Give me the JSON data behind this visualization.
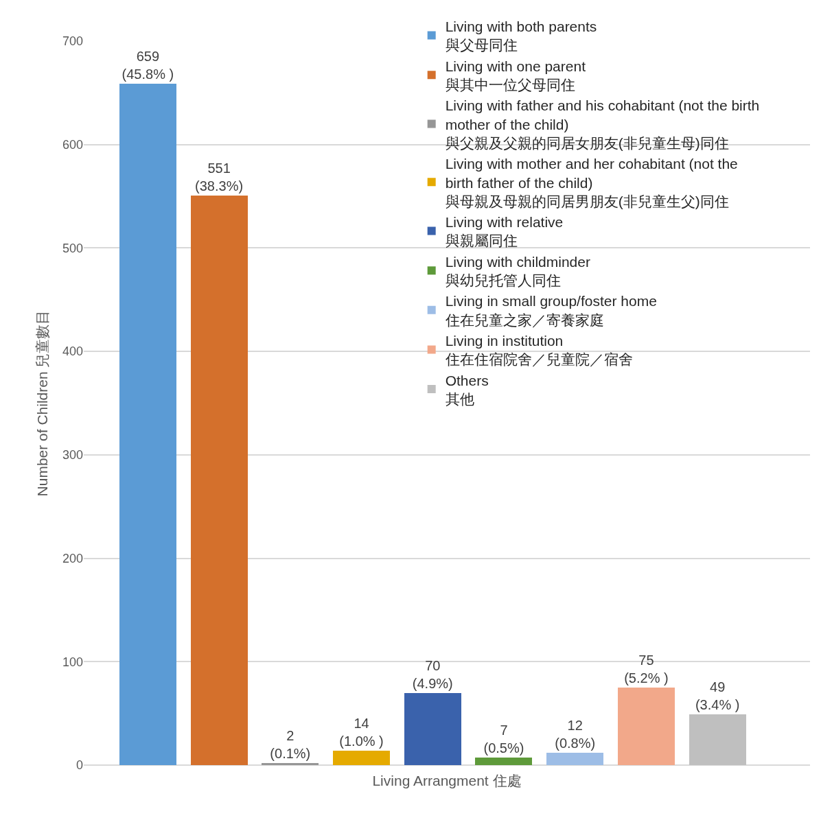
{
  "chart_data": {
    "type": "bar",
    "xlabel": "Living Arrangment 住處",
    "ylabel": "Number of Children 兒童數目",
    "categories": [
      null,
      null,
      null,
      null,
      null,
      null,
      null,
      null,
      null
    ],
    "series": [
      {
        "name": "Living with both parents\n與父母同住",
        "color": "#5b9bd5",
        "values": [
          659,
          null,
          null,
          null,
          null,
          null,
          null,
          null,
          null
        ],
        "value_labels": [
          "659\n(45.8% )",
          null,
          null,
          null,
          null,
          null,
          null,
          null,
          null
        ]
      },
      {
        "name": "Living with one parent\n與其中一位父母同住",
        "color": "#d4702c",
        "values": [
          null,
          551,
          null,
          null,
          null,
          null,
          null,
          null,
          null
        ],
        "value_labels": [
          null,
          "551\n(38.3%)",
          null,
          null,
          null,
          null,
          null,
          null,
          null
        ]
      },
      {
        "name": "Living with father and his cohabitant (not the birth\nmother of the child)\n與父親及父親的同居女朋友(非兒童生母)同住",
        "color": "#969696",
        "values": [
          null,
          null,
          2,
          null,
          null,
          null,
          null,
          null,
          null
        ],
        "value_labels": [
          null,
          null,
          "2\n(0.1%)",
          null,
          null,
          null,
          null,
          null,
          null
        ]
      },
      {
        "name": "Living with mother and her cohabitant (not the\nbirth father of the child)\n與母親及母親的同居男朋友(非兒童生父)同住",
        "color": "#e5aa00",
        "values": [
          null,
          null,
          null,
          14,
          null,
          null,
          null,
          null,
          null
        ],
        "value_labels": [
          null,
          null,
          null,
          "14\n(1.0% )",
          null,
          null,
          null,
          null,
          null
        ]
      },
      {
        "name": "Living with relative\n與親屬同住",
        "color": "#3a62ac",
        "values": [
          null,
          null,
          null,
          null,
          70,
          null,
          null,
          null,
          null
        ],
        "value_labels": [
          null,
          null,
          null,
          null,
          "70\n(4.9%)",
          null,
          null,
          null,
          null
        ]
      },
      {
        "name": "Living with childminder\n與幼兒托管人同住",
        "color": "#5e9a3a",
        "values": [
          null,
          null,
          null,
          null,
          null,
          7,
          null,
          null,
          null
        ],
        "value_labels": [
          null,
          null,
          null,
          null,
          null,
          "7\n(0.5%)",
          null,
          null,
          null
        ]
      },
      {
        "name": "Living in small group/foster home\n住在兒童之家／寄養家庭",
        "color": "#9dbde6",
        "values": [
          null,
          null,
          null,
          null,
          null,
          null,
          12,
          null,
          null
        ],
        "value_labels": [
          null,
          null,
          null,
          null,
          null,
          null,
          "12\n(0.8%)",
          null,
          null
        ]
      },
      {
        "name": "Living in institution\n住在住宿院舍／兒童院／宿舍",
        "color": "#f2a88a",
        "values": [
          null,
          null,
          null,
          null,
          null,
          null,
          null,
          75,
          null
        ],
        "value_labels": [
          null,
          null,
          null,
          null,
          null,
          null,
          null,
          "75\n(5.2% )",
          null
        ]
      },
      {
        "name": "Others\n其他",
        "color": "#bfbfbf",
        "values": [
          null,
          null,
          null,
          null,
          null,
          null,
          null,
          null,
          49
        ],
        "value_labels": [
          null,
          null,
          null,
          null,
          null,
          null,
          null,
          null,
          "49\n(3.4% )"
        ]
      }
    ],
    "ylim": [
      0,
      700
    ],
    "yticks": [
      0,
      100,
      200,
      300,
      400,
      500,
      600,
      700
    ],
    "grid": "y",
    "legend": "top right",
    "stacked": true
  }
}
